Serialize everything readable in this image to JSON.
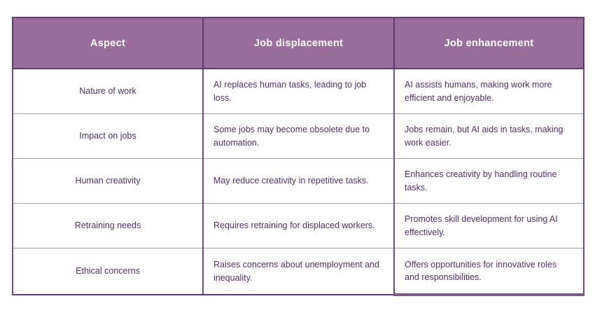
{
  "table": {
    "columns": [
      "Aspect",
      "Job displacement",
      "Job enhancement"
    ],
    "rows": [
      {
        "aspect": "Nature of work",
        "displacement": "AI replaces human tasks, leading to job loss.",
        "enhancement": "AI assists humans, making work more efficient and enjoyable."
      },
      {
        "aspect": "Impact on jobs",
        "displacement": "Some jobs may become obsolete due to automation.",
        "enhancement": "Jobs remain, but AI aids in tasks, making work easier."
      },
      {
        "aspect": "Human creativity",
        "displacement": "May reduce creativity in repetitive tasks.",
        "enhancement": "Enhances creativity by handling routine tasks."
      },
      {
        "aspect": "Retraining needs",
        "displacement": "Requires retraining for displaced workers.",
        "enhancement": "Promotes skill development for using AI effectively."
      },
      {
        "aspect": "Ethical concerns",
        "displacement": "Raises concerns about unemployment and inequality.",
        "enhancement": "Offers opportunities for innovative roles and responsibilities."
      }
    ],
    "colors": {
      "header_bg": "#9a6c9c",
      "header_text": "#ffffff",
      "body_text": "#4f2d63",
      "border_dark": "#5d3d6e",
      "border_medium": "#6f4f80",
      "border_light": "#b29bbd",
      "page_background": "#ffffff"
    }
  }
}
